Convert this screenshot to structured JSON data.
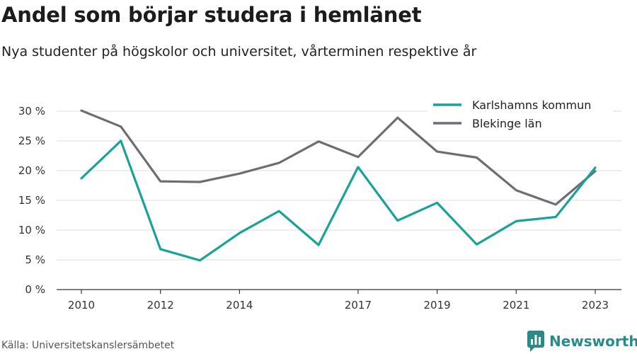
{
  "title": "Andel som börjar studera i hemlänet",
  "subtitle": "Nya studenter på högskolor och universitet, vårterminen respektive år",
  "source": "Källa: Universitetskanslersämbetet",
  "brand": {
    "name": "Newsworthy",
    "icon": "bar-chart-icon",
    "color": "#2a8a8a"
  },
  "chart_data": {
    "type": "line",
    "x": [
      2010,
      2011,
      2012,
      2013,
      2014,
      2015,
      2016,
      2017,
      2018,
      2019,
      2020,
      2021,
      2022,
      2023
    ],
    "x_tick_labels": [
      "2010",
      "2012",
      "2014",
      "2017",
      "2019",
      "2021",
      "2023"
    ],
    "y_ticks": [
      0,
      5,
      10,
      15,
      20,
      25,
      30
    ],
    "y_tick_labels": [
      "0 %",
      "5 %",
      "10 %",
      "15 %",
      "20 %",
      "25 %",
      "30 %"
    ],
    "ylim": [
      0,
      30
    ],
    "grid": true,
    "legend_position": "top-right",
    "series": [
      {
        "name": "Karlshamns kommun",
        "color": "#17a398",
        "values": [
          18.7,
          25.0,
          6.8,
          4.9,
          9.5,
          13.2,
          7.5,
          20.6,
          11.6,
          14.6,
          7.6,
          11.5,
          12.2,
          20.5
        ]
      },
      {
        "name": "Blekinge län",
        "color": "#6d6d73",
        "values": [
          30.1,
          27.4,
          18.2,
          18.1,
          19.5,
          21.3,
          24.9,
          22.3,
          28.9,
          23.2,
          22.2,
          16.7,
          14.3,
          19.9
        ]
      }
    ]
  }
}
